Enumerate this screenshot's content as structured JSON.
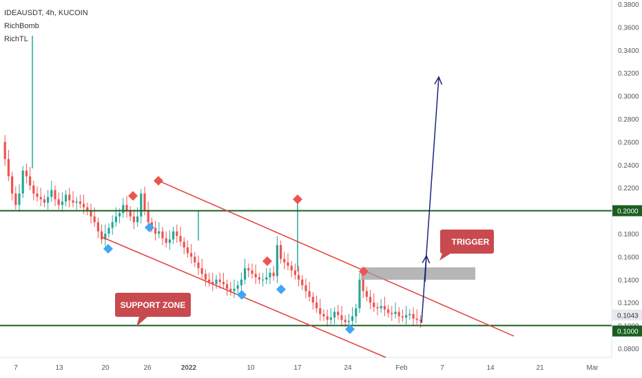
{
  "header": {
    "symbol_line": "IDEAUSDT, 4h, KUCOIN",
    "indicators": [
      "RichBomb",
      "RichTL"
    ]
  },
  "chart_data": {
    "type": "candlestick",
    "symbol": "IDEAUSDT",
    "timeframe": "4h",
    "exchange": "KUCOIN",
    "ylim": [
      0.07,
      0.39
    ],
    "y_ticks": [
      "0.0800",
      "0.1000",
      "0.1200",
      "0.1400",
      "0.1600",
      "0.1800",
      "0.2000",
      "0.2200",
      "0.2400",
      "0.2600",
      "0.2800",
      "0.3000",
      "0.3200",
      "0.3400",
      "0.3600",
      "0.3800"
    ],
    "x_ticks": [
      "7",
      "13",
      "20",
      "26",
      "2022",
      "10",
      "17",
      "24",
      "Feb",
      "7",
      "14",
      "21",
      "Mar"
    ],
    "price_badges": [
      {
        "text": "0.2000",
        "value": 0.2
      },
      {
        "text": "0.1043",
        "value": 0.1043
      },
      {
        "text": "0.1000",
        "value": 0.1
      }
    ],
    "series_close_path": [
      [
        0,
        0.26
      ],
      [
        1,
        0.245
      ],
      [
        2,
        0.23
      ],
      [
        3,
        0.215
      ],
      [
        4,
        0.205
      ],
      [
        5,
        0.215
      ],
      [
        6,
        0.235
      ],
      [
        7,
        0.23
      ],
      [
        8,
        0.222
      ],
      [
        9,
        0.215
      ],
      [
        10,
        0.212
      ],
      [
        11,
        0.21
      ],
      [
        12,
        0.207
      ],
      [
        13,
        0.212
      ],
      [
        14,
        0.218
      ],
      [
        15,
        0.21
      ],
      [
        16,
        0.205
      ],
      [
        17,
        0.208
      ],
      [
        18,
        0.214
      ],
      [
        19,
        0.209
      ],
      [
        20,
        0.207
      ],
      [
        21,
        0.208
      ],
      [
        22,
        0.206
      ],
      [
        23,
        0.203
      ],
      [
        24,
        0.2
      ],
      [
        25,
        0.195
      ],
      [
        26,
        0.19
      ],
      [
        27,
        0.182
      ],
      [
        28,
        0.175
      ],
      [
        29,
        0.18
      ],
      [
        30,
        0.185
      ],
      [
        31,
        0.19
      ],
      [
        32,
        0.195
      ],
      [
        33,
        0.198
      ],
      [
        34,
        0.205
      ],
      [
        35,
        0.2
      ],
      [
        36,
        0.195
      ],
      [
        37,
        0.19
      ],
      [
        38,
        0.195
      ],
      [
        39,
        0.215
      ],
      [
        40,
        0.2
      ],
      [
        41,
        0.19
      ],
      [
        42,
        0.185
      ],
      [
        43,
        0.18
      ],
      [
        44,
        0.182
      ],
      [
        45,
        0.176
      ],
      [
        46,
        0.172
      ],
      [
        47,
        0.175
      ],
      [
        48,
        0.182
      ],
      [
        49,
        0.178
      ],
      [
        50,
        0.173
      ],
      [
        51,
        0.168
      ],
      [
        52,
        0.163
      ],
      [
        53,
        0.16
      ],
      [
        54,
        0.155
      ],
      [
        55,
        0.15
      ],
      [
        56,
        0.145
      ],
      [
        57,
        0.14
      ],
      [
        58,
        0.138
      ],
      [
        59,
        0.136
      ],
      [
        60,
        0.14
      ],
      [
        61,
        0.138
      ],
      [
        62,
        0.136
      ],
      [
        63,
        0.132
      ],
      [
        64,
        0.13
      ],
      [
        65,
        0.132
      ],
      [
        66,
        0.135
      ],
      [
        67,
        0.14
      ],
      [
        68,
        0.15
      ],
      [
        69,
        0.148
      ],
      [
        70,
        0.145
      ],
      [
        71,
        0.142
      ],
      [
        72,
        0.14
      ],
      [
        73,
        0.14
      ],
      [
        74,
        0.142
      ],
      [
        75,
        0.146
      ],
      [
        76,
        0.143
      ],
      [
        77,
        0.17
      ],
      [
        78,
        0.158
      ],
      [
        79,
        0.155
      ],
      [
        80,
        0.152
      ],
      [
        81,
        0.148
      ],
      [
        82,
        0.144
      ],
      [
        83,
        0.14
      ],
      [
        84,
        0.135
      ],
      [
        85,
        0.13
      ],
      [
        86,
        0.125
      ],
      [
        87,
        0.12
      ],
      [
        88,
        0.115
      ],
      [
        89,
        0.11
      ],
      [
        90,
        0.108
      ],
      [
        91,
        0.105
      ],
      [
        92,
        0.107
      ],
      [
        93,
        0.112
      ],
      [
        94,
        0.109
      ],
      [
        95,
        0.105
      ],
      [
        96,
        0.103
      ],
      [
        97,
        0.104
      ],
      [
        98,
        0.108
      ],
      [
        99,
        0.115
      ],
      [
        100,
        0.14
      ],
      [
        101,
        0.13
      ],
      [
        102,
        0.125
      ],
      [
        103,
        0.12
      ],
      [
        104,
        0.116
      ],
      [
        105,
        0.115
      ],
      [
        106,
        0.117
      ],
      [
        107,
        0.114
      ],
      [
        108,
        0.111
      ],
      [
        109,
        0.11
      ],
      [
        110,
        0.112
      ],
      [
        111,
        0.108
      ],
      [
        112,
        0.107
      ],
      [
        113,
        0.109
      ],
      [
        114,
        0.11
      ],
      [
        115,
        0.106
      ],
      [
        116,
        0.105
      ],
      [
        117,
        0.104
      ]
    ],
    "lines": [
      {
        "name": "resistance-horizontal",
        "color": "#1b5e20",
        "y": 0.2
      },
      {
        "name": "support-horizontal",
        "color": "#1b5e20",
        "y": 0.1
      }
    ],
    "zone_label": "SUPPORT ZONE",
    "trigger_label": "TRIGGER",
    "colors": {
      "up": "#26a69a",
      "down": "#ef5350",
      "trend_line": "#e53935",
      "arrow": "#1a237e",
      "callout": "#c84a4f",
      "zone_box": "#9e9e9e",
      "marker_red": "#ef5350",
      "marker_blue": "#42a5f5"
    },
    "grid": false
  }
}
